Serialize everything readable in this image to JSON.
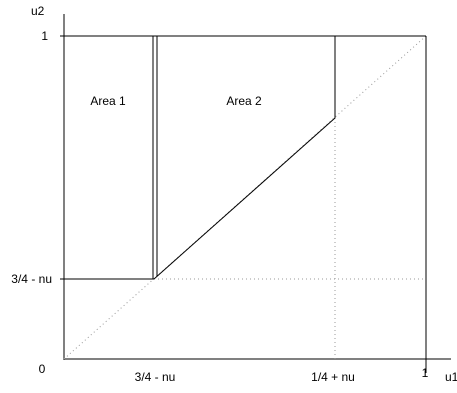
{
  "axes": {
    "y_label": "u2",
    "x_label": "u1"
  },
  "regions": {
    "area1_label": "Area 1",
    "area2_label": "Area 2"
  },
  "ticks": {
    "x_zero": "0",
    "x_low": "3/4 - nu",
    "x_high": "1/4 + nu",
    "x_one": "1",
    "y_one": "1",
    "y_low": "3/4 - nu"
  },
  "colors": {
    "line": "#000000",
    "dotted": "#999999"
  }
}
